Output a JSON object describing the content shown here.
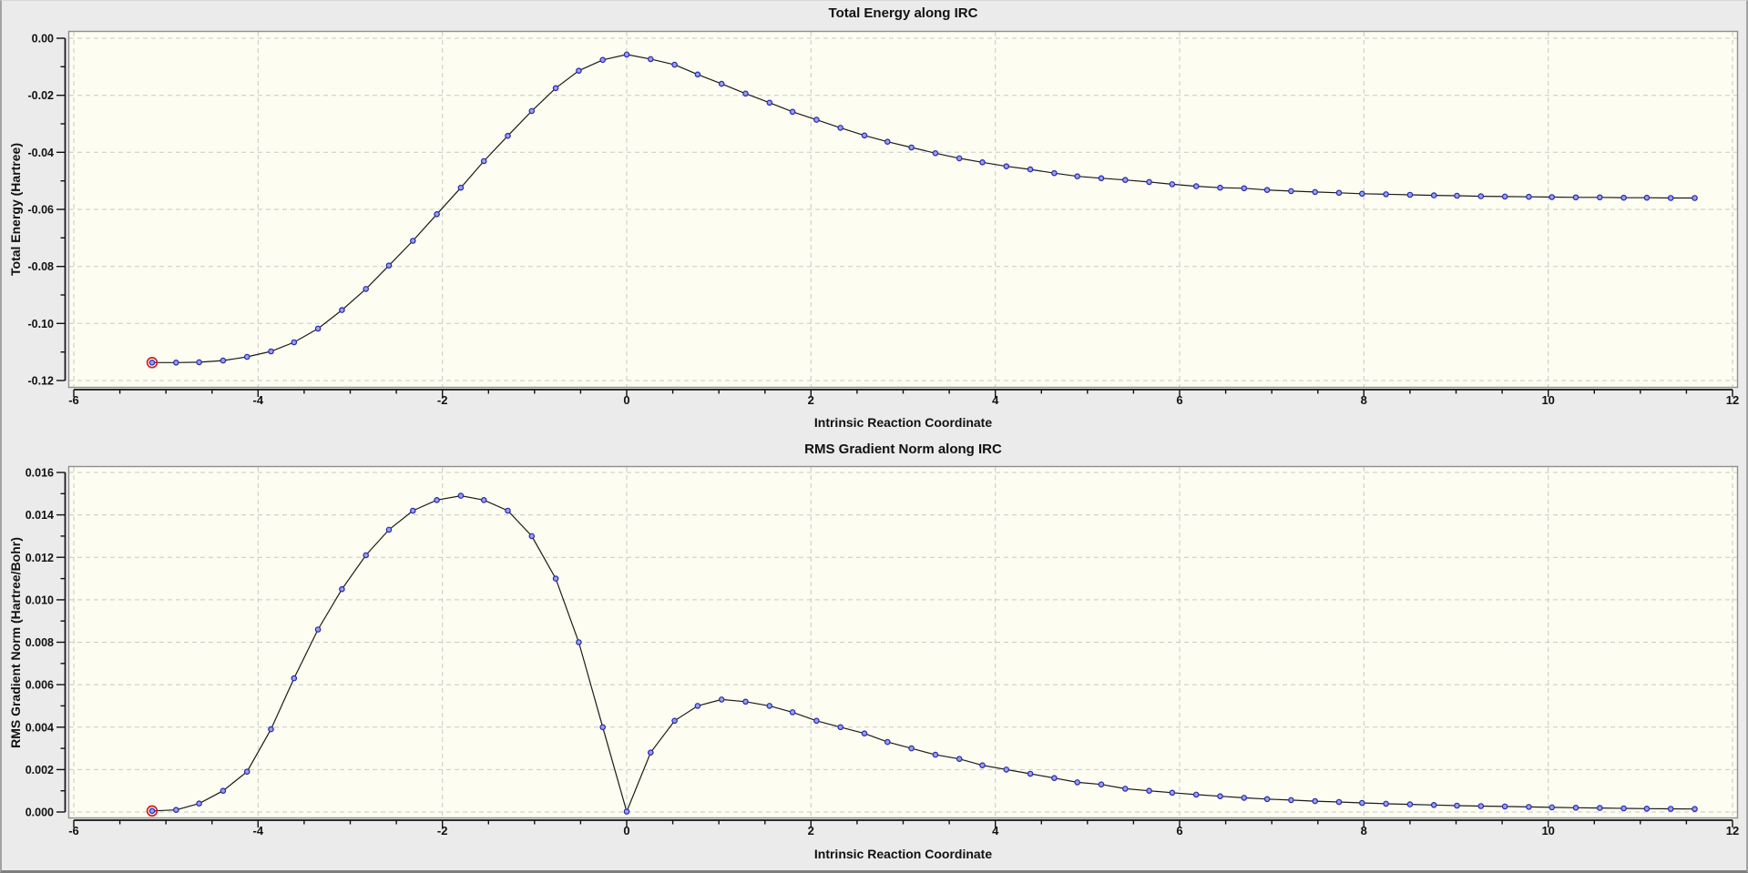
{
  "window": {
    "background": "#ebebeb"
  },
  "style": {
    "plot_background": "#fdfdf1",
    "grid_color": "#c9c9c9",
    "border_color": "#8f8f8f",
    "axis_color": "#111111",
    "line_color": "#1b1b1b",
    "marker_fill": "#98a2e4",
    "marker_stroke": "#2828b8",
    "selected_ring_color": "#cf1f1f",
    "text_color": "#111111"
  },
  "chart_data": [
    {
      "type": "line",
      "title": "Total Energy along IRC",
      "xlabel": "Intrinsic Reaction Coordinate",
      "ylabel": "Total Energy (Hartree)",
      "xlim": [
        -6,
        12
      ],
      "ylim": [
        -0.12,
        0.0
      ],
      "grid": "dashed",
      "legend": "none",
      "x_ticks": [
        -6,
        -4,
        -2,
        0,
        2,
        4,
        6,
        8,
        10,
        12
      ],
      "x_tick_labels": [
        "-6",
        "-4",
        "-2",
        "0",
        "2",
        "4",
        "6",
        "8",
        "10",
        "12"
      ],
      "x_minor_step": 0.5,
      "y_ticks": [
        0.0,
        -0.02,
        -0.04,
        -0.06,
        -0.08,
        -0.1,
        -0.12
      ],
      "y_tick_labels": [
        "0.00",
        "-0.02",
        "-0.04",
        "-0.06",
        "-0.08",
        "-0.10",
        "-0.12"
      ],
      "y_minor_step": 0.01,
      "selected_point_index": 0,
      "x": [
        -5.15,
        -4.89,
        -4.64,
        -4.38,
        -4.12,
        -3.86,
        -3.61,
        -3.35,
        -3.09,
        -2.83,
        -2.58,
        -2.32,
        -2.06,
        -1.8,
        -1.55,
        -1.29,
        -1.03,
        -0.77,
        -0.52,
        -0.26,
        0.0,
        0.26,
        0.52,
        0.77,
        1.03,
        1.29,
        1.55,
        1.8,
        2.06,
        2.32,
        2.58,
        2.83,
        3.09,
        3.35,
        3.61,
        3.86,
        4.12,
        4.38,
        4.64,
        4.89,
        5.15,
        5.41,
        5.67,
        5.92,
        6.18,
        6.44,
        6.7,
        6.95,
        7.21,
        7.47,
        7.73,
        7.98,
        8.24,
        8.5,
        8.76,
        9.01,
        9.27,
        9.53,
        9.79,
        10.04,
        10.3,
        10.56,
        10.82,
        11.07,
        11.33,
        11.59
      ],
      "y": [
        -0.1137,
        -0.1137,
        -0.1136,
        -0.113,
        -0.1117,
        -0.1098,
        -0.1066,
        -0.1018,
        -0.0953,
        -0.0879,
        -0.0797,
        -0.071,
        -0.0617,
        -0.0524,
        -0.0431,
        -0.0342,
        -0.0255,
        -0.0175,
        -0.0114,
        -0.0076,
        -0.0057,
        -0.0073,
        -0.0093,
        -0.0127,
        -0.016,
        -0.0194,
        -0.0226,
        -0.0258,
        -0.0286,
        -0.0314,
        -0.0341,
        -0.0363,
        -0.0383,
        -0.0403,
        -0.0421,
        -0.0435,
        -0.0449,
        -0.046,
        -0.0473,
        -0.0484,
        -0.0491,
        -0.0497,
        -0.0504,
        -0.0512,
        -0.0519,
        -0.0524,
        -0.0526,
        -0.0532,
        -0.0536,
        -0.0539,
        -0.0542,
        -0.0545,
        -0.0547,
        -0.0549,
        -0.0551,
        -0.0552,
        -0.0554,
        -0.0555,
        -0.0556,
        -0.0557,
        -0.0558,
        -0.0558,
        -0.0559,
        -0.0559,
        -0.056,
        -0.056
      ]
    },
    {
      "type": "line",
      "title": "RMS Gradient Norm along IRC",
      "xlabel": "Intrinsic Reaction Coordinate",
      "ylabel": "RMS Gradient Norm (Hartree/Bohr)",
      "xlim": [
        -6,
        12
      ],
      "ylim": [
        0.0,
        0.016
      ],
      "grid": "dashed",
      "legend": "none",
      "x_ticks": [
        -6,
        -4,
        -2,
        0,
        2,
        4,
        6,
        8,
        10,
        12
      ],
      "x_tick_labels": [
        "-6",
        "-4",
        "-2",
        "0",
        "2",
        "4",
        "6",
        "8",
        "10",
        "12"
      ],
      "x_minor_step": 0.5,
      "y_ticks": [
        0.0,
        0.002,
        0.004,
        0.006,
        0.008,
        0.01,
        0.012,
        0.014,
        0.016
      ],
      "y_tick_labels": [
        "0.000",
        "0.002",
        "0.004",
        "0.006",
        "0.008",
        "0.010",
        "0.012",
        "0.014",
        "0.016"
      ],
      "y_minor_step": 0.001,
      "selected_point_index": 0,
      "x": [
        -5.15,
        -4.89,
        -4.64,
        -4.38,
        -4.12,
        -3.86,
        -3.61,
        -3.35,
        -3.09,
        -2.83,
        -2.58,
        -2.32,
        -2.06,
        -1.8,
        -1.55,
        -1.29,
        -1.03,
        -0.77,
        -0.52,
        -0.26,
        0.0,
        0.26,
        0.52,
        0.77,
        1.03,
        1.29,
        1.55,
        1.8,
        2.06,
        2.32,
        2.58,
        2.83,
        3.09,
        3.35,
        3.61,
        3.86,
        4.12,
        4.38,
        4.64,
        4.89,
        5.15,
        5.41,
        5.67,
        5.92,
        6.18,
        6.44,
        6.7,
        6.95,
        7.21,
        7.47,
        7.73,
        7.98,
        8.24,
        8.5,
        8.76,
        9.01,
        9.27,
        9.53,
        9.79,
        10.04,
        10.3,
        10.56,
        10.82,
        11.07,
        11.33,
        11.59
      ],
      "y": [
        5e-05,
        0.0001,
        0.0004,
        0.001,
        0.0019,
        0.0039,
        0.0063,
        0.0086,
        0.0105,
        0.0121,
        0.0133,
        0.0142,
        0.0147,
        0.0149,
        0.0147,
        0.0142,
        0.013,
        0.011,
        0.008,
        0.004,
        2e-05,
        0.0028,
        0.0043,
        0.005,
        0.0053,
        0.0052,
        0.005,
        0.0047,
        0.0043,
        0.004,
        0.0037,
        0.0033,
        0.003,
        0.0027,
        0.0025,
        0.0022,
        0.002,
        0.0018,
        0.0016,
        0.0014,
        0.0013,
        0.0011,
        0.001,
        0.00091,
        0.00082,
        0.00074,
        0.00067,
        0.00061,
        0.00056,
        0.00051,
        0.00047,
        0.00043,
        0.00039,
        0.00036,
        0.00033,
        0.0003,
        0.00028,
        0.00026,
        0.00024,
        0.00022,
        0.0002,
        0.00019,
        0.00017,
        0.00016,
        0.00015,
        0.00014
      ]
    }
  ]
}
